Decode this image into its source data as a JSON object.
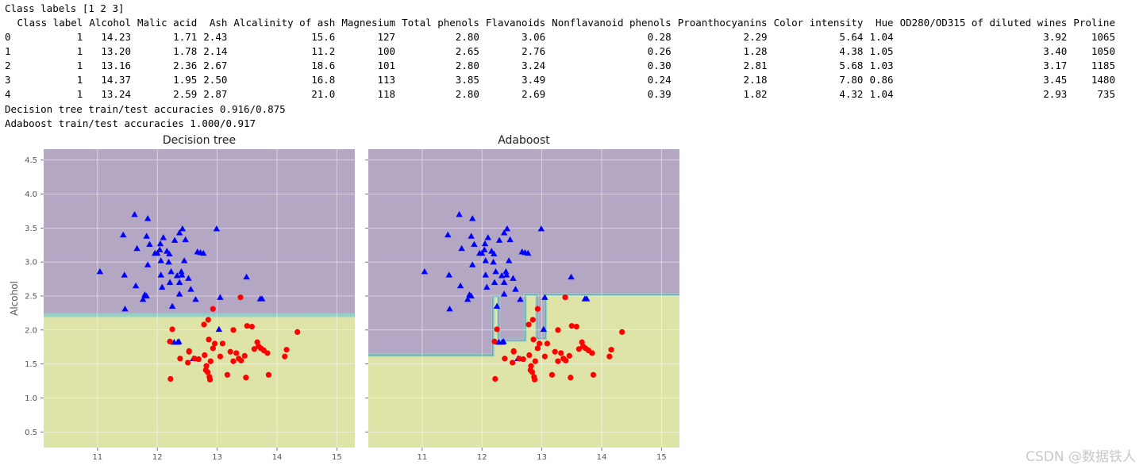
{
  "header_line": "Class labels [1 2 3]",
  "table": {
    "columns": [
      "Class label",
      "Alcohol",
      "Malic acid",
      "Ash",
      "Alcalinity of ash",
      "Magnesium",
      "Total phenols",
      "Flavanoids",
      "Nonflavanoid phenols",
      "Proanthocyanins",
      "Color intensity",
      "Hue",
      "OD280/OD315 of diluted wines",
      "Proline"
    ],
    "rows": [
      {
        "index": "0",
        "cells": [
          "1",
          "14.23",
          "1.71",
          "2.43",
          "15.6",
          "127",
          "2.80",
          "3.06",
          "0.28",
          "2.29",
          "5.64",
          "1.04",
          "3.92",
          "1065"
        ]
      },
      {
        "index": "1",
        "cells": [
          "1",
          "13.20",
          "1.78",
          "2.14",
          "11.2",
          "100",
          "2.65",
          "2.76",
          "0.26",
          "1.28",
          "4.38",
          "1.05",
          "3.40",
          "1050"
        ]
      },
      {
        "index": "2",
        "cells": [
          "1",
          "13.16",
          "2.36",
          "2.67",
          "18.6",
          "101",
          "2.80",
          "3.24",
          "0.30",
          "2.81",
          "5.68",
          "1.03",
          "3.17",
          "1185"
        ]
      },
      {
        "index": "3",
        "cells": [
          "1",
          "14.37",
          "1.95",
          "2.50",
          "16.8",
          "113",
          "3.85",
          "3.49",
          "0.24",
          "2.18",
          "7.80",
          "0.86",
          "3.45",
          "1480"
        ]
      },
      {
        "index": "4",
        "cells": [
          "1",
          "13.24",
          "2.59",
          "2.87",
          "21.0",
          "118",
          "2.80",
          "2.69",
          "0.39",
          "1.82",
          "4.32",
          "1.04",
          "2.93",
          "735"
        ]
      }
    ]
  },
  "accuracy_lines": [
    "Decision tree train/test accuracies 0.916/0.875",
    "Adaboost train/test accuracies 1.000/0.917"
  ],
  "watermark": "CSDN @数据铁人",
  "chart_data": [
    {
      "type": "scatter",
      "title": "Decision tree",
      "xlabel": "",
      "ylabel": "Alcohol",
      "xlim": [
        10.1,
        15.3
      ],
      "ylim": [
        0.27,
        4.66
      ],
      "xticks": [
        "11",
        "12",
        "13",
        "14",
        "15"
      ],
      "yticks": [
        "0.5",
        "1.0",
        "1.5",
        "2.0",
        "2.5",
        "3.0",
        "3.5",
        "4.0",
        "4.5"
      ],
      "decision_boundary_y": 2.22,
      "region_colors": {
        "class_1": "#b4a7c3",
        "class_2": "#dee3a7"
      },
      "series_ref": [
        "class_1",
        "class_2"
      ]
    },
    {
      "type": "scatter",
      "title": "Adaboost",
      "xlabel": "",
      "ylabel": "",
      "xlim": [
        10.1,
        15.3
      ],
      "ylim": [
        0.27,
        4.66
      ],
      "xticks": [
        "11",
        "12",
        "13",
        "14",
        "15"
      ],
      "yticks": [],
      "decision_boundary_steps": [
        [
          10.1,
          1.63
        ],
        [
          12.18,
          1.63
        ],
        [
          12.18,
          2.5
        ],
        [
          12.28,
          2.5
        ],
        [
          12.28,
          1.85
        ],
        [
          12.72,
          1.85
        ],
        [
          12.72,
          2.52
        ],
        [
          12.92,
          2.52
        ],
        [
          12.92,
          1.88
        ],
        [
          13.06,
          1.88
        ],
        [
          13.06,
          2.52
        ],
        [
          15.3,
          2.52
        ]
      ],
      "region_colors": {
        "class_1": "#b4a7c3",
        "class_2": "#dee3a7"
      },
      "series_ref": [
        "class_1",
        "class_2"
      ]
    }
  ],
  "series": [
    {
      "name": "class_1",
      "marker": "triangle",
      "color": "#0000ff",
      "points": [
        [
          11.04,
          2.86
        ],
        [
          11.43,
          3.4
        ],
        [
          11.45,
          2.81
        ],
        [
          11.46,
          2.31
        ],
        [
          11.62,
          3.7
        ],
        [
          11.64,
          2.65
        ],
        [
          11.66,
          3.2
        ],
        [
          11.76,
          2.45
        ],
        [
          11.79,
          2.52
        ],
        [
          11.82,
          2.5
        ],
        [
          11.82,
          3.38
        ],
        [
          11.84,
          3.64
        ],
        [
          11.84,
          2.96
        ],
        [
          11.87,
          3.26
        ],
        [
          11.96,
          3.13
        ],
        [
          12.0,
          3.13
        ],
        [
          12.04,
          3.18
        ],
        [
          12.05,
          3.27
        ],
        [
          12.06,
          3.02
        ],
        [
          12.06,
          2.81
        ],
        [
          12.08,
          2.63
        ],
        [
          12.1,
          3.36
        ],
        [
          12.16,
          3.16
        ],
        [
          12.19,
          3.0
        ],
        [
          12.2,
          3.12
        ],
        [
          12.21,
          2.7
        ],
        [
          12.23,
          2.86
        ],
        [
          12.25,
          2.35
        ],
        [
          12.29,
          3.32
        ],
        [
          12.33,
          2.8
        ],
        [
          12.37,
          3.43
        ],
        [
          12.37,
          2.7
        ],
        [
          12.37,
          2.53
        ],
        [
          12.4,
          2.86
        ],
        [
          12.41,
          2.81
        ],
        [
          12.42,
          3.49
        ],
        [
          12.45,
          3.02
        ],
        [
          12.47,
          3.33
        ],
        [
          12.52,
          2.76
        ],
        [
          12.56,
          2.6
        ],
        [
          12.64,
          2.45
        ],
        [
          12.67,
          3.15
        ],
        [
          12.72,
          3.14
        ],
        [
          12.77,
          3.13
        ],
        [
          12.99,
          3.49
        ],
        [
          13.03,
          2.01
        ],
        [
          12.6,
          1.58
        ],
        [
          12.36,
          1.83
        ],
        [
          12.28,
          1.82
        ],
        [
          12.34,
          1.82
        ],
        [
          13.49,
          2.78
        ],
        [
          13.05,
          2.48
        ],
        [
          13.75,
          2.46
        ],
        [
          13.72,
          2.46
        ]
      ]
    },
    {
      "name": "class_2",
      "marker": "circle",
      "color": "#ff0000",
      "points": [
        [
          12.93,
          2.31
        ],
        [
          13.39,
          2.48
        ],
        [
          12.22,
          1.28
        ],
        [
          12.25,
          2.01
        ],
        [
          12.38,
          1.58
        ],
        [
          12.53,
          1.69
        ],
        [
          12.62,
          1.58
        ],
        [
          12.69,
          1.57
        ],
        [
          12.79,
          1.63
        ],
        [
          12.82,
          1.47
        ],
        [
          12.84,
          1.38
        ],
        [
          12.86,
          1.86
        ],
        [
          12.87,
          1.31
        ],
        [
          12.89,
          1.54
        ],
        [
          12.93,
          1.73
        ],
        [
          12.96,
          1.8
        ],
        [
          13.09,
          1.8
        ],
        [
          13.17,
          1.34
        ],
        [
          13.22,
          1.68
        ],
        [
          13.27,
          1.54
        ],
        [
          13.32,
          1.66
        ],
        [
          13.36,
          1.58
        ],
        [
          13.4,
          1.55
        ],
        [
          13.46,
          1.62
        ],
        [
          13.48,
          1.3
        ],
        [
          13.5,
          2.06
        ],
        [
          13.58,
          2.05
        ],
        [
          13.62,
          1.72
        ],
        [
          13.67,
          1.82
        ],
        [
          13.69,
          1.76
        ],
        [
          13.73,
          1.73
        ],
        [
          13.78,
          1.7
        ],
        [
          13.84,
          1.66
        ],
        [
          13.86,
          1.34
        ],
        [
          14.13,
          1.61
        ],
        [
          14.16,
          1.71
        ],
        [
          14.34,
          1.97
        ],
        [
          12.51,
          1.52
        ],
        [
          12.81,
          1.41
        ],
        [
          12.88,
          1.27
        ],
        [
          12.21,
          1.83
        ],
        [
          12.78,
          2.08
        ],
        [
          12.85,
          2.15
        ],
        [
          12.53,
          1.68
        ],
        [
          13.05,
          1.61
        ],
        [
          13.27,
          2.0
        ]
      ]
    }
  ]
}
